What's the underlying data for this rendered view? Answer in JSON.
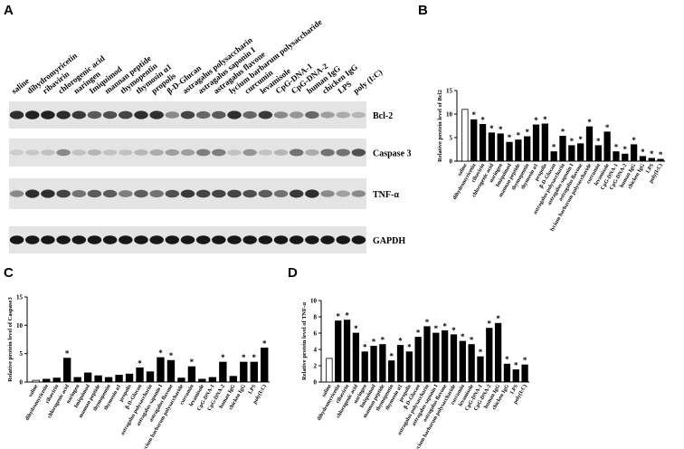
{
  "panel_a": {
    "panel_label": "A",
    "lanes": [
      "saline",
      "dihydromyricetin",
      "ribavirin",
      "chlorogenic acid",
      "naringen",
      "Imiquimod",
      "mannan peptide",
      "thymopentin",
      "thymosin α1",
      "propolis",
      "β-D-Glucan",
      "astragalus polysaccharin",
      "astragalus saponin I",
      "astragalus flavone",
      "lycium barbarum polysaccharide",
      "curcumin",
      "levamisole",
      "CpG-DNA-1",
      "CpG-DNA-2",
      "human IgG",
      "chicken IgG",
      "LPS",
      "poly (I:C)"
    ],
    "bands": [
      "Bcl-2",
      "Caspase 3",
      "TNF-α",
      "GAPDH"
    ]
  },
  "chart_data": [
    {
      "type": "bar",
      "panel_label": "B",
      "ylabel": "Relative protein level of Bcl2",
      "categories": [
        "saline",
        "dihydromyricetin",
        "ribavirin",
        "chlorogenic acid",
        "naringen",
        "Imiquimod",
        "mannan peptide",
        "thymopentin",
        "thymosin α1",
        "propolis",
        "β-D-Glucan",
        "astragalus polysaccharin",
        "astragalus saponin I",
        "astragalus flavone",
        "lycium barbarum polysaccharide",
        "curcumin",
        "levamisole",
        "CpG-DNA-1",
        "CpG-DNA-2",
        "human IgG",
        "chicken IgG",
        "LPS",
        "poly(I:C)"
      ],
      "values": [
        11,
        8.8,
        7.8,
        6.0,
        5.8,
        4.0,
        4.5,
        5.2,
        7.7,
        7.9,
        2.0,
        5.3,
        3.3,
        3.7,
        7.3,
        3.3,
        6.2,
        2.0,
        1.5,
        3.5,
        1.0,
        0.6,
        0.4
      ],
      "significance": [
        null,
        "*",
        "*",
        "*",
        "*",
        "*",
        "*",
        "*",
        "*",
        "*",
        "*",
        "*",
        "*",
        "*",
        "*",
        "*",
        "*",
        "*",
        "*",
        "*",
        "*",
        "*",
        "*"
      ],
      "colors": [
        "#ffffff",
        "#000000",
        "#000000",
        "#000000",
        "#000000",
        "#000000",
        "#000000",
        "#000000",
        "#000000",
        "#000000",
        "#000000",
        "#000000",
        "#000000",
        "#000000",
        "#000000",
        "#000000",
        "#000000",
        "#000000",
        "#000000",
        "#000000",
        "#000000",
        "#000000",
        "#000000"
      ],
      "ylim": [
        0,
        15
      ],
      "yticks": [
        0,
        5,
        10,
        15
      ]
    },
    {
      "type": "bar",
      "panel_label": "C",
      "ylabel": "Relative protein level of Caspase3",
      "categories": [
        "saline",
        "dihydromyricetin",
        "ribavirin",
        "chlorogenic acid",
        "naringen",
        "Imiquimod",
        "mannan peptide",
        "thymopentin",
        "thymosin α1",
        "propolis",
        "β-D-Glucan",
        "astragalus polysaccharin",
        "astragalus saponin I",
        "astragalus flavone",
        "lycium barbarum polysaccharide",
        "curcumin",
        "levamisole",
        "CpG-DNA-1",
        "CpG-DNA-2",
        "human IgG",
        "chicken IgG",
        "LPS",
        "poly(I:C)"
      ],
      "values": [
        0.3,
        0.5,
        0.7,
        4.2,
        0.8,
        1.6,
        1.1,
        0.8,
        1.2,
        1.4,
        2.5,
        1.8,
        4.3,
        3.8,
        0.7,
        2.7,
        0.5,
        0.8,
        3.5,
        1.0,
        3.5,
        3.5,
        6.0
      ],
      "significance": [
        null,
        null,
        null,
        "*",
        null,
        null,
        null,
        null,
        null,
        null,
        "*",
        null,
        "*",
        "*",
        null,
        "*",
        null,
        null,
        "*",
        null,
        "*",
        "*",
        "*"
      ],
      "colors": [
        "#ffffff",
        "#000000",
        "#000000",
        "#000000",
        "#000000",
        "#000000",
        "#000000",
        "#000000",
        "#000000",
        "#000000",
        "#000000",
        "#000000",
        "#000000",
        "#000000",
        "#000000",
        "#000000",
        "#000000",
        "#000000",
        "#000000",
        "#000000",
        "#000000",
        "#000000",
        "#000000"
      ],
      "ylim": [
        0,
        15
      ],
      "yticks": [
        0,
        5,
        10,
        15
      ]
    },
    {
      "type": "bar",
      "panel_label": "D",
      "ylabel": "Relative protein level of TNF-α",
      "categories": [
        "saline",
        "dihydromyricetin",
        "ribavirin",
        "chlorogenic acid",
        "naringen",
        "Imiquimod",
        "mannan peptide",
        "thymopentin",
        "thymosin α1",
        "propolis",
        "β-D-Glucan",
        "astragalus polysaccharin",
        "astragalus saponin I",
        "astragalus flavone",
        "lycium barbarum polysaccharide",
        "curcumin",
        "levamisole",
        "CpG-DNA-1",
        "CpG-DNA-2",
        "human IgG",
        "chicken IgG",
        "LPS",
        "poly(I:C)"
      ],
      "values": [
        2.9,
        7.5,
        7.6,
        6.0,
        3.7,
        4.4,
        4.6,
        2.6,
        4.5,
        3.7,
        5.5,
        6.8,
        6.0,
        6.3,
        5.8,
        5.0,
        4.6,
        3.1,
        6.6,
        7.2,
        2.2,
        1.5,
        2.1
      ],
      "significance": [
        null,
        "*",
        "*",
        "*",
        "*",
        "*",
        "*",
        "*",
        "*",
        "*",
        "*",
        "*",
        "*",
        "*",
        "*",
        "*",
        "*",
        "*",
        "*",
        "*",
        "*",
        "*",
        "*"
      ],
      "colors": [
        "#ffffff",
        "#000000",
        "#000000",
        "#000000",
        "#000000",
        "#000000",
        "#000000",
        "#000000",
        "#000000",
        "#000000",
        "#000000",
        "#000000",
        "#000000",
        "#000000",
        "#000000",
        "#000000",
        "#000000",
        "#000000",
        "#000000",
        "#000000",
        "#000000",
        "#000000",
        "#000000"
      ],
      "ylim": [
        0,
        10
      ],
      "yticks": [
        0,
        2,
        4,
        6,
        8,
        10
      ]
    }
  ]
}
